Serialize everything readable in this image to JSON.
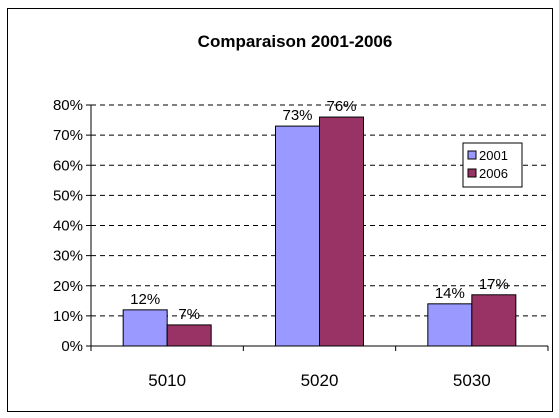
{
  "chart_data": {
    "type": "bar",
    "title": "Comparaison 2001-2006",
    "categories": [
      "5010",
      "5020",
      "5030"
    ],
    "series": [
      {
        "name": "2001",
        "values": [
          12,
          73,
          14
        ],
        "labels": [
          "12%",
          "73%",
          "14%"
        ]
      },
      {
        "name": "2006",
        "values": [
          7,
          76,
          17
        ],
        "labels": [
          "7%",
          "76%",
          "17%"
        ]
      }
    ],
    "ylim": [
      0,
      80
    ],
    "y_ticks": [
      0,
      10,
      20,
      30,
      40,
      50,
      60,
      70,
      80
    ],
    "y_tick_labels": [
      "0%",
      "10%",
      "20%",
      "30%",
      "40%",
      "50%",
      "60%",
      "70%",
      "80%"
    ],
    "grid": true,
    "legend": "right",
    "colors": [
      "#9999FF",
      "#993366"
    ]
  }
}
